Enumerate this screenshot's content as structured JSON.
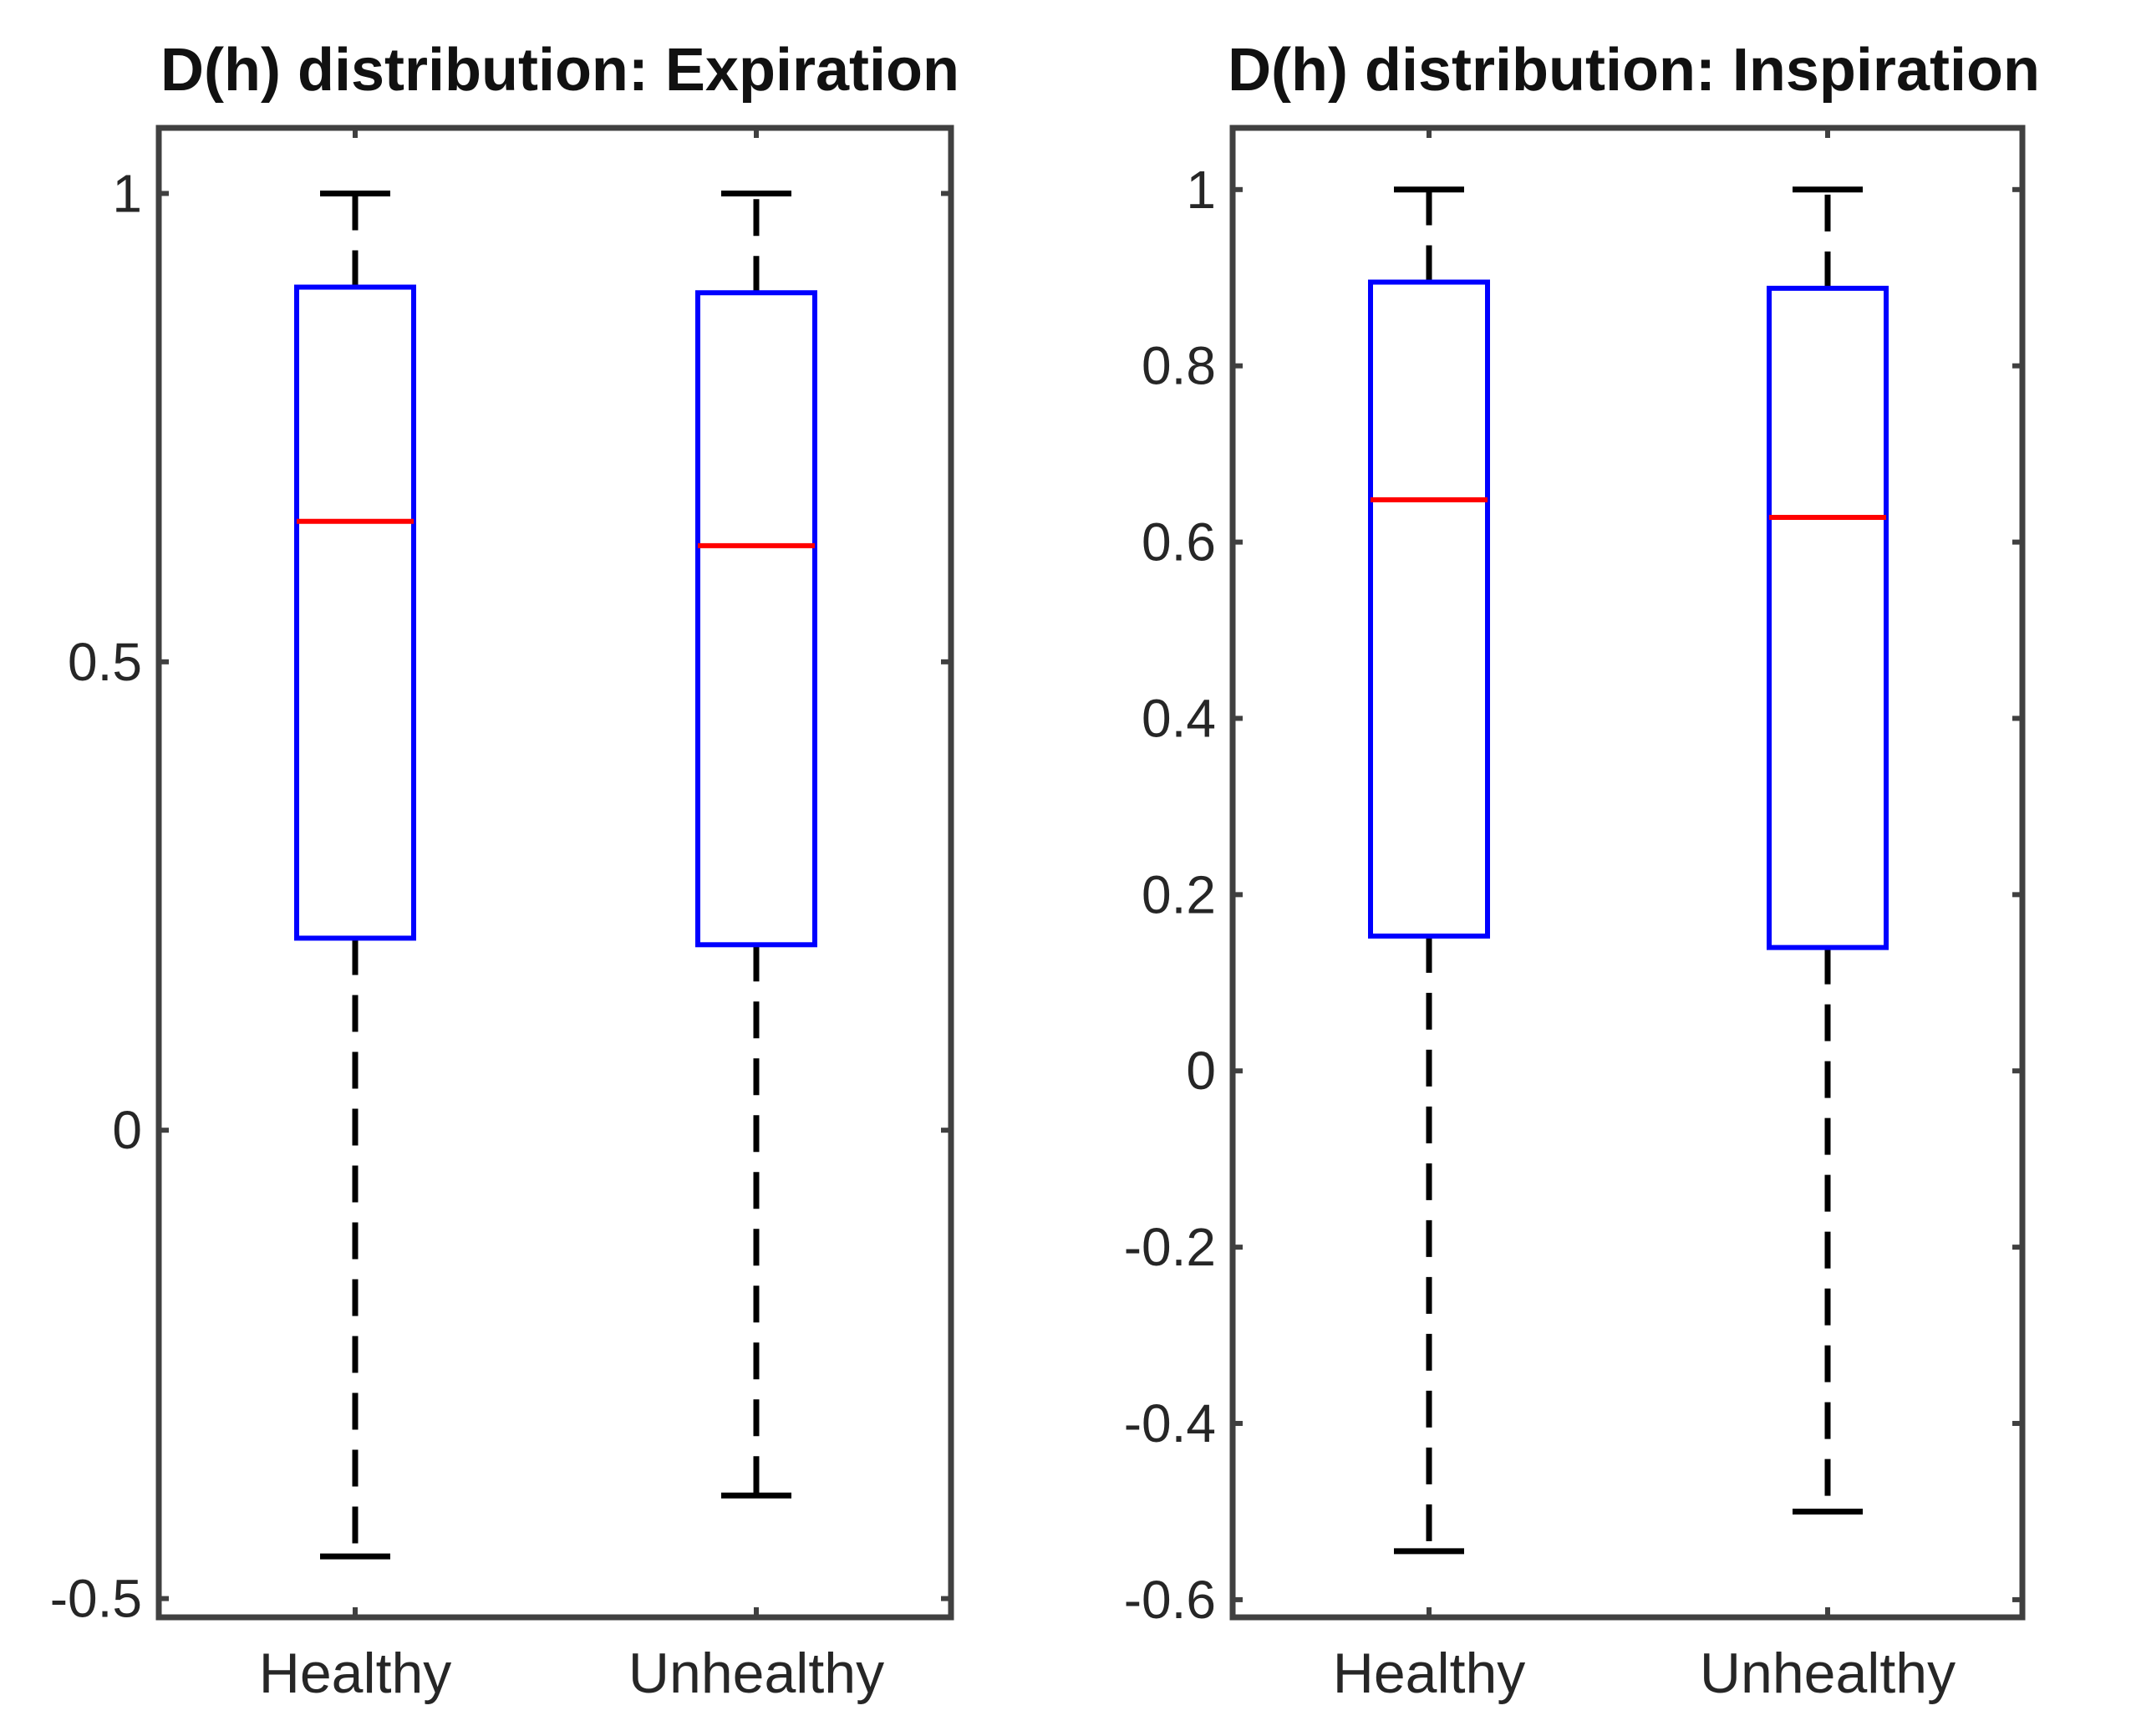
{
  "chart_data": [
    {
      "type": "boxplot",
      "title": "D(h) distribution: Expiration",
      "categories": [
        "Healthy",
        "Unhealthy"
      ],
      "ylim": [
        -0.52,
        1.07
      ],
      "yticks": [
        -0.5,
        0,
        0.5,
        1
      ],
      "ytick_labels": [
        "-0.5",
        "0",
        "0.5",
        "1"
      ],
      "boxes": [
        {
          "category": "Healthy",
          "whisker_low": -0.455,
          "q1": 0.205,
          "median": 0.65,
          "q3": 0.9,
          "whisker_high": 1.0
        },
        {
          "category": "Unhealthy",
          "whisker_low": -0.39,
          "q1": 0.198,
          "median": 0.624,
          "q3": 0.894,
          "whisker_high": 1.0
        }
      ]
    },
    {
      "type": "boxplot",
      "title": "D(h) distribution: Inspiration",
      "categories": [
        "Healthy",
        "Unhealthy"
      ],
      "ylim": [
        -0.62,
        1.07
      ],
      "yticks": [
        -0.6,
        -0.4,
        -0.2,
        0,
        0.2,
        0.4,
        0.6,
        0.8,
        1
      ],
      "ytick_labels": [
        "-0.6",
        "-0.4",
        "-0.2",
        "0",
        "0.2",
        "0.4",
        "0.6",
        "0.8",
        "1"
      ],
      "boxes": [
        {
          "category": "Healthy",
          "whisker_low": -0.545,
          "q1": 0.153,
          "median": 0.648,
          "q3": 0.895,
          "whisker_high": 1.0
        },
        {
          "category": "Unhealthy",
          "whisker_low": -0.5,
          "q1": 0.14,
          "median": 0.628,
          "q3": 0.888,
          "whisker_high": 1.0
        }
      ]
    }
  ],
  "colors": {
    "box": "#0000ff",
    "median": "#ff0000",
    "whisker": "#000000",
    "axes": "#404040"
  }
}
